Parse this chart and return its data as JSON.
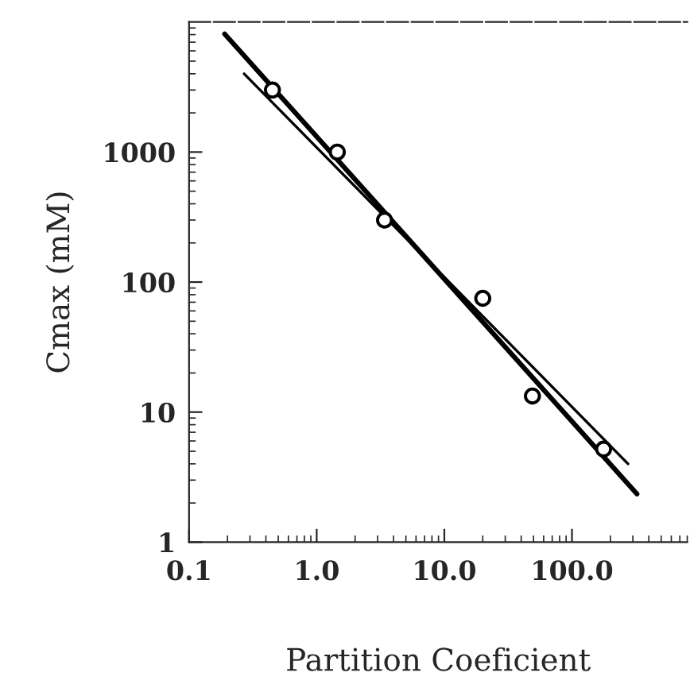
{
  "chart_data": {
    "type": "scatter",
    "xlabel": "Partition Coeficient",
    "ylabel": "Cmax (mM)",
    "log": "xy",
    "grid": false,
    "xlim": [
      0.1,
      800
    ],
    "ylim": [
      1,
      10000
    ],
    "xticks": [
      {
        "value": 0.1,
        "label": "0.1"
      },
      {
        "value": 1,
        "label": "1.0"
      },
      {
        "value": 10,
        "label": "10.0"
      },
      {
        "value": 100,
        "label": "100.0"
      }
    ],
    "yticks": [
      1,
      10,
      100,
      1000
    ],
    "series": [
      {
        "color": "#000000",
        "marker": "circle",
        "x": [
          0.45,
          1.45,
          3.4,
          20,
          49,
          177
        ],
        "values": [
          3000,
          1000,
          300,
          75,
          13.3,
          5.2
        ]
      },
      {
        "type": "line",
        "color": "#000000",
        "marker": "none",
        "line_style": "solid",
        "x": [
          0.19,
          323
        ],
        "values": [
          8100,
          2.35
        ]
      },
      {
        "type": "line",
        "color": "#000000",
        "marker": "none",
        "line_style": "solid",
        "x": [
          0.27,
          275
        ],
        "values": [
          4000,
          4.0
        ]
      }
    ]
  }
}
